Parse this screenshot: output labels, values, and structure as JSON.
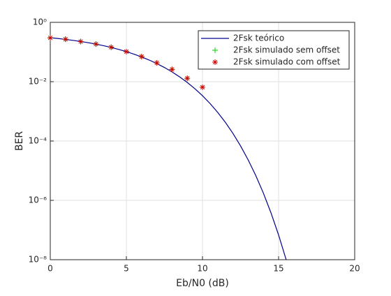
{
  "chart_data": {
    "type": "line",
    "ylabel": "BER",
    "xlabel": "Eb/N0 (dB)",
    "log_y": true,
    "grid": true,
    "legend": "northeast",
    "xlim": [
      0,
      20
    ],
    "xticks": [
      0,
      5,
      10,
      15,
      20
    ],
    "ylim": [
      1e-08,
      1
    ],
    "yticks": [
      {
        "value": 1,
        "label": "10⁰"
      },
      {
        "value": 0.01,
        "label": "10⁻²"
      },
      {
        "value": 0.0001,
        "label": "10⁻⁴"
      },
      {
        "value": 1e-06,
        "label": "10⁻⁶"
      },
      {
        "value": 1e-08,
        "label": "10⁻⁸"
      }
    ],
    "series": [
      {
        "name": "2Fsk teórico",
        "color": "#00008b",
        "marker": "none",
        "x": [
          0,
          0.5,
          1,
          1.5,
          2,
          2.5,
          3,
          3.5,
          4,
          4.5,
          5,
          5.5,
          6,
          6.5,
          7,
          7.5,
          8,
          8.5,
          9,
          9.5,
          10,
          10.5,
          11,
          11.5,
          12,
          12.5,
          13,
          13.5,
          14,
          14.5,
          15,
          15.5
        ],
        "values": [
          0.3033,
          0.2853,
          0.2664,
          0.2467,
          0.2264,
          0.2056,
          0.1844,
          0.1633,
          0.1424,
          0.1222,
          0.1029,
          0.0849,
          0.0683,
          0.0536,
          0.0408,
          0.0301,
          0.0213,
          0.01451,
          0.00942,
          0.0058,
          0.00337,
          0.00183,
          0.000922,
          0.000428,
          0.000181,
          6.87e-05,
          2.32e-05,
          6.88e-06,
          1.76e-06,
          3.8e-07,
          6.8e-08,
          9.9e-09
        ]
      },
      {
        "name": "2Fsk simulado sem offset",
        "color": "#00cc00",
        "marker": "plus",
        "x": [
          0,
          1,
          2,
          3,
          4,
          5,
          6,
          7,
          8,
          9,
          10
        ],
        "values": [
          0.3,
          0.27,
          0.225,
          0.185,
          0.145,
          0.103,
          0.07,
          0.043,
          0.026,
          0.013,
          0.0065
        ]
      },
      {
        "name": "2Fsk simulado com offset",
        "color": "#cc0000",
        "marker": "star",
        "x": [
          0,
          1,
          2,
          3,
          4,
          5,
          6,
          7,
          8,
          9,
          10
        ],
        "values": [
          0.3,
          0.27,
          0.225,
          0.185,
          0.145,
          0.103,
          0.07,
          0.043,
          0.026,
          0.013,
          0.0065
        ]
      }
    ]
  }
}
